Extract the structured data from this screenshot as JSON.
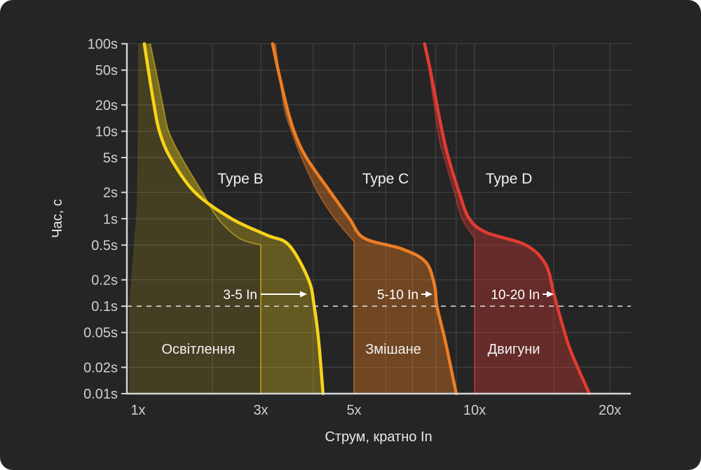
{
  "chart_data": {
    "type": "area",
    "title": "",
    "xlabel": "Струм, кратно In",
    "ylabel": "Час, с",
    "x_scale": "log-custom",
    "y_scale": "log",
    "x_range": [
      1,
      20
    ],
    "y_range_seconds": [
      0.01,
      100
    ],
    "grid": true,
    "x_ticks": [
      {
        "value": 1,
        "label": "1x"
      },
      {
        "value": 3,
        "label": "3x"
      },
      {
        "value": 5,
        "label": "5x"
      },
      {
        "value": 10,
        "label": "10x"
      },
      {
        "value": 20,
        "label": "20x"
      }
    ],
    "x_gridlines": [
      2,
      3,
      4,
      5,
      6,
      7,
      8,
      9,
      10,
      15,
      20
    ],
    "y_ticks": [
      {
        "value": 100,
        "label": "100s"
      },
      {
        "value": 50,
        "label": "50s"
      },
      {
        "value": 20,
        "label": "20s"
      },
      {
        "value": 10,
        "label": "10s"
      },
      {
        "value": 5,
        "label": "5s"
      },
      {
        "value": 2,
        "label": "2s"
      },
      {
        "value": 1,
        "label": "1s"
      },
      {
        "value": 0.5,
        "label": "0.5s"
      },
      {
        "value": 0.2,
        "label": "0.2s"
      },
      {
        "value": 0.1,
        "label": "0.1s"
      },
      {
        "value": 0.05,
        "label": "0.05s"
      },
      {
        "value": 0.02,
        "label": "0.02s"
      },
      {
        "value": 0.01,
        "label": "0.01s"
      }
    ],
    "y_gridlines": [
      100,
      50,
      20,
      10,
      5,
      2,
      1,
      0.5,
      0.2,
      0.05,
      0.02
    ],
    "dashed_reference_time": 0.1,
    "colors": {
      "background": "#252525",
      "grid": "#464646",
      "axis": "#d6d6d6",
      "dashed_line": "#e3e3e3",
      "tick_text": "#cfcfcf",
      "label_text": "#f2f2f2"
    },
    "series": [
      {
        "name": "Type B",
        "zone_label": "Освітлення",
        "range_label": "3-5 In",
        "magnetic_trip_range": [
          3,
          5
        ],
        "stroke": "#f6d31a",
        "band_fill_opacity": 0.3,
        "zone_fill_opacity": 0.15,
        "outer_curve": [
          [
            1.06,
            100
          ],
          [
            1.1,
            50
          ],
          [
            1.16,
            20
          ],
          [
            1.22,
            10
          ],
          [
            1.35,
            5
          ],
          [
            1.7,
            2
          ],
          [
            2.35,
            1
          ],
          [
            3.1,
            0.65
          ],
          [
            3.5,
            0.5
          ],
          [
            3.9,
            0.2
          ],
          [
            4.02,
            0.1
          ],
          [
            4.12,
            0.04
          ],
          [
            4.22,
            0.01
          ]
        ],
        "inner_curve": [
          [
            1.12,
            100
          ],
          [
            1.18,
            50
          ],
          [
            1.26,
            20
          ],
          [
            1.33,
            10
          ],
          [
            1.5,
            5
          ],
          [
            1.82,
            2
          ],
          [
            2.1,
            1
          ],
          [
            2.5,
            0.6
          ],
          [
            3.0,
            0.5
          ],
          [
            3.0,
            0.01
          ]
        ],
        "zone_left_edge": [
          [
            1.0,
            100
          ],
          [
            0.99,
            2
          ],
          [
            0.96,
            0.5
          ],
          [
            0.92,
            0.1
          ],
          [
            0.92,
            0.01
          ]
        ]
      },
      {
        "name": "Type C",
        "zone_label": "Змішане",
        "range_label": "5-10 In",
        "magnetic_trip_range": [
          5,
          10
        ],
        "stroke": "#ed7d23",
        "band_fill_opacity": 0.38,
        "outer_curve": [
          [
            3.2,
            100
          ],
          [
            3.3,
            50
          ],
          [
            3.45,
            20
          ],
          [
            3.6,
            10
          ],
          [
            3.85,
            5
          ],
          [
            4.4,
            2
          ],
          [
            4.88,
            1
          ],
          [
            5.3,
            0.6
          ],
          [
            6.6,
            0.45
          ],
          [
            7.55,
            0.32
          ],
          [
            7.95,
            0.17
          ],
          [
            8.05,
            0.1
          ],
          [
            8.45,
            0.04
          ],
          [
            9.0,
            0.01
          ]
        ],
        "inner_curve": [
          [
            3.25,
            100
          ],
          [
            3.4,
            20
          ],
          [
            3.55,
            10
          ],
          [
            3.75,
            5
          ],
          [
            4.1,
            2
          ],
          [
            4.5,
            1
          ],
          [
            5.0,
            0.55
          ],
          [
            5.0,
            0.01
          ]
        ]
      },
      {
        "name": "Type D",
        "zone_label": "Двигуни",
        "range_label": "10-20 In",
        "magnetic_trip_range": [
          10,
          20
        ],
        "stroke": "#e23b32",
        "band_fill_opacity": 0.34,
        "outer_curve": [
          [
            7.5,
            100
          ],
          [
            7.75,
            50
          ],
          [
            8.05,
            20
          ],
          [
            8.3,
            10
          ],
          [
            8.6,
            5
          ],
          [
            9.15,
            2
          ],
          [
            9.7,
            1
          ],
          [
            10.6,
            0.7
          ],
          [
            13.0,
            0.5
          ],
          [
            14.4,
            0.3
          ],
          [
            15.0,
            0.14
          ],
          [
            15.7,
            0.06
          ],
          [
            16.4,
            0.03
          ],
          [
            18.0,
            0.01
          ]
        ],
        "inner_curve": [
          [
            7.55,
            100
          ],
          [
            8.1,
            10
          ],
          [
            8.4,
            5
          ],
          [
            8.9,
            2
          ],
          [
            9.3,
            1
          ],
          [
            10.0,
            0.6
          ],
          [
            10.0,
            0.01
          ]
        ]
      }
    ]
  }
}
